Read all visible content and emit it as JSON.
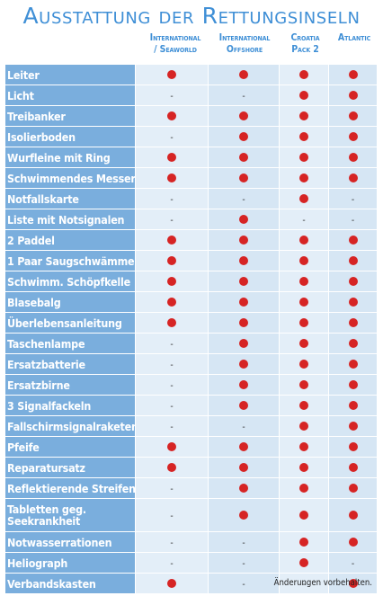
{
  "title": "Ausstattung der Rettungsinseln",
  "columns": [
    {
      "line1": "International",
      "line2": "/ Seaworld"
    },
    {
      "line1": "International",
      "line2": "Offshore"
    },
    {
      "line1": "Croatia",
      "line2": "Pack 2"
    },
    {
      "line1": "Atlantic",
      "line2": ""
    }
  ],
  "markers": {
    "yes_color": "#d62424",
    "no_symbol": "-"
  },
  "rows": [
    {
      "label": "Leiter",
      "values": [
        true,
        true,
        true,
        true
      ]
    },
    {
      "label": "Licht",
      "values": [
        false,
        false,
        true,
        true
      ]
    },
    {
      "label": "Treibanker",
      "values": [
        true,
        true,
        true,
        true
      ]
    },
    {
      "label": "Isolierboden",
      "values": [
        false,
        true,
        true,
        true
      ]
    },
    {
      "label": "Wurfleine mit Ring",
      "values": [
        true,
        true,
        true,
        true
      ]
    },
    {
      "label": "Schwimmendes Messer",
      "values": [
        true,
        true,
        true,
        true
      ]
    },
    {
      "label": "Notfallskarte",
      "values": [
        false,
        false,
        true,
        false
      ]
    },
    {
      "label": "Liste mit Notsignalen",
      "values": [
        false,
        true,
        false,
        false
      ]
    },
    {
      "label": "2 Paddel",
      "values": [
        true,
        true,
        true,
        true
      ]
    },
    {
      "label": "1 Paar Saugschwämme",
      "values": [
        true,
        true,
        true,
        true
      ]
    },
    {
      "label": "Schwimm. Schöpfkelle",
      "values": [
        true,
        true,
        true,
        true
      ]
    },
    {
      "label": "Blasebalg",
      "values": [
        true,
        true,
        true,
        true
      ]
    },
    {
      "label": "Überlebensanleitung",
      "values": [
        true,
        true,
        true,
        true
      ]
    },
    {
      "label": "Taschenlampe",
      "values": [
        false,
        true,
        true,
        true
      ]
    },
    {
      "label": "Ersatzbatterie",
      "values": [
        false,
        true,
        true,
        true
      ]
    },
    {
      "label": "Ersatzbirne",
      "values": [
        false,
        true,
        true,
        true
      ]
    },
    {
      "label": "3 Signalfackeln",
      "values": [
        false,
        true,
        true,
        true
      ]
    },
    {
      "label": "Fallschirmsignalraketen",
      "values": [
        false,
        false,
        true,
        true
      ]
    },
    {
      "label": "Pfeife",
      "values": [
        true,
        true,
        true,
        true
      ]
    },
    {
      "label": "Reparatursatz",
      "values": [
        true,
        true,
        true,
        true
      ]
    },
    {
      "label": "Reflektierende Streifen",
      "values": [
        false,
        true,
        true,
        true
      ]
    },
    {
      "label": "Tabletten geg. Seekrankheit",
      "values": [
        false,
        true,
        true,
        true
      ]
    },
    {
      "label": "Notwasserrationen",
      "values": [
        false,
        false,
        true,
        true
      ]
    },
    {
      "label": "Heliograph",
      "values": [
        false,
        false,
        true,
        false
      ]
    },
    {
      "label": "Verbandskasten",
      "values": [
        true,
        false,
        false,
        true
      ]
    }
  ],
  "footnote": "Änderungen vorbehalten."
}
